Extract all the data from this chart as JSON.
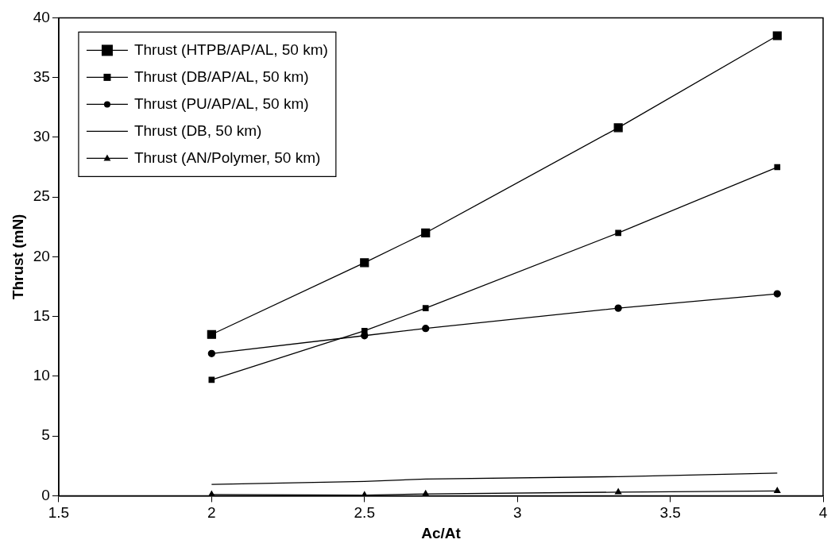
{
  "chart_data": {
    "type": "line",
    "xlabel": "Ac/At",
    "ylabel": "Thrust (mN)",
    "xlim": [
      1.5,
      4
    ],
    "xticks": [
      1.5,
      2,
      2.5,
      3,
      3.5,
      4
    ],
    "ylim": [
      0,
      40
    ],
    "yticks": [
      0,
      5,
      10,
      15,
      20,
      25,
      30,
      35,
      40
    ],
    "x": [
      2,
      2.5,
      2.7,
      3.33,
      3.85
    ],
    "series": [
      {
        "name": "Thrust (HTPB/AP/AL, 50 km)",
        "color": "#000000",
        "marker": "square",
        "values": [
          13.5,
          19.5,
          22.0,
          30.8,
          38.5
        ]
      },
      {
        "name": "Thrust (DB/AP/AL, 50 km)",
        "color": "#000000",
        "marker": "square",
        "values": [
          9.7,
          13.8,
          15.7,
          22.0,
          27.5
        ]
      },
      {
        "name": "Thrust (PU/AP/AL, 50 km)",
        "color": "#000000",
        "marker": "circle",
        "values": [
          11.9,
          13.4,
          14.0,
          15.7,
          16.9
        ]
      },
      {
        "name": "Thrust (DB, 50 km)",
        "color": "#000000",
        "marker": "none",
        "values": [
          0.95,
          1.2,
          1.4,
          1.6,
          1.9
        ]
      },
      {
        "name": "Thrust (AN/Polymer, 50 km)",
        "color": "#000000",
        "marker": "triangle",
        "values": [
          0.1,
          0.05,
          0.15,
          0.3,
          0.4
        ]
      }
    ],
    "grid": false,
    "legend": "top left",
    "line_style": "solid"
  }
}
